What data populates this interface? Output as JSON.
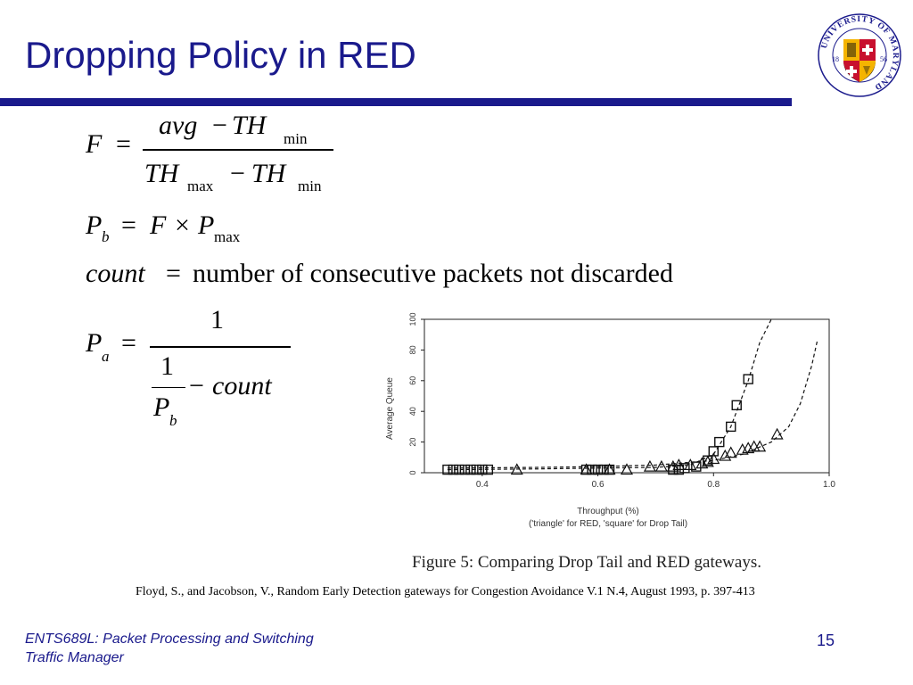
{
  "slide": {
    "title": "Dropping Policy in RED",
    "logo": {
      "ring_text": "UNIVERSITY OF MARYLAND",
      "year_left": "18",
      "year_right": "56",
      "colors": {
        "red": "#c8102e",
        "gold": "#f5b400",
        "black": "#111111",
        "navy": "#1a1a8c"
      }
    },
    "formulas": {
      "f_lhs": "F",
      "f_num_a": "avg",
      "f_num_b": "TH",
      "f_num_sub": "min",
      "f_den_a": "TH",
      "f_den_a_sub": "max",
      "f_den_b": "TH",
      "f_den_b_sub": "min",
      "pb_lhs": "P",
      "pb_lhs_sub": "b",
      "pb_rhs_a": "F",
      "pb_rhs_b": "P",
      "pb_rhs_b_sub": "max",
      "count_lhs": "count",
      "count_rhs": "number of consecutive packets not discarded",
      "pa_lhs": "P",
      "pa_lhs_sub": "a",
      "pa_num": "1",
      "pa_inner_num": "1",
      "pa_inner_den": "P",
      "pa_inner_den_sub": "b",
      "pa_count": "count"
    },
    "figure_caption": "Figure 5: Comparing Drop Tail and RED gateways.",
    "citation": "Floyd, S., and Jacobson, V., Random Early Detection gateways for Congestion Avoidance V.1 N.4, August 1993, p. 397-413",
    "footer_line1": "ENTS689L: Packet Processing and Switching",
    "footer_line2": "Traffic Manager",
    "page_number": "15"
  },
  "chart_data": {
    "type": "scatter",
    "xlabel": "Throughput (%)",
    "xlabel_note": "('triangle' for RED, 'square' for Drop Tail)",
    "ylabel": "Average Queue",
    "xlim": [
      0.3,
      1.0
    ],
    "ylim": [
      0,
      100
    ],
    "x_ticks": [
      "0.4",
      "0.6",
      "0.8",
      "1.0"
    ],
    "y_ticks": [
      "0",
      "20",
      "40",
      "60",
      "80",
      "100"
    ],
    "x_tick_values": [
      0.4,
      0.6,
      0.8,
      1.0
    ],
    "y_tick_values": [
      0,
      20,
      40,
      60,
      80,
      100
    ],
    "series": [
      {
        "marker": "square",
        "points": [
          [
            0.34,
            2
          ],
          [
            0.35,
            2
          ],
          [
            0.36,
            2
          ],
          [
            0.37,
            2
          ],
          [
            0.38,
            2
          ],
          [
            0.39,
            2
          ],
          [
            0.4,
            2
          ],
          [
            0.41,
            2
          ],
          [
            0.58,
            2
          ],
          [
            0.59,
            2
          ],
          [
            0.6,
            2
          ],
          [
            0.61,
            2
          ],
          [
            0.62,
            2
          ],
          [
            0.73,
            2
          ],
          [
            0.74,
            2
          ],
          [
            0.75,
            3
          ],
          [
            0.77,
            4
          ],
          [
            0.79,
            8
          ],
          [
            0.8,
            14
          ],
          [
            0.81,
            20
          ],
          [
            0.83,
            30
          ],
          [
            0.84,
            44
          ],
          [
            0.86,
            61
          ]
        ],
        "curve": [
          [
            0.34,
            2
          ],
          [
            0.5,
            2.5
          ],
          [
            0.6,
            3
          ],
          [
            0.7,
            3.5
          ],
          [
            0.76,
            5
          ],
          [
            0.8,
            12
          ],
          [
            0.83,
            30
          ],
          [
            0.86,
            60
          ],
          [
            0.88,
            85
          ],
          [
            0.9,
            100
          ]
        ]
      },
      {
        "marker": "triangle",
        "points": [
          [
            0.46,
            2
          ],
          [
            0.58,
            2
          ],
          [
            0.62,
            2
          ],
          [
            0.65,
            2
          ],
          [
            0.69,
            4
          ],
          [
            0.71,
            4
          ],
          [
            0.73,
            4
          ],
          [
            0.74,
            5
          ],
          [
            0.76,
            5
          ],
          [
            0.78,
            6
          ],
          [
            0.79,
            7
          ],
          [
            0.8,
            9
          ],
          [
            0.82,
            11
          ],
          [
            0.83,
            13
          ],
          [
            0.85,
            15
          ],
          [
            0.86,
            16
          ],
          [
            0.87,
            17
          ],
          [
            0.88,
            17
          ],
          [
            0.91,
            25
          ]
        ],
        "curve": [
          [
            0.34,
            3
          ],
          [
            0.5,
            3.5
          ],
          [
            0.6,
            4
          ],
          [
            0.7,
            5
          ],
          [
            0.8,
            8
          ],
          [
            0.85,
            12
          ],
          [
            0.9,
            20
          ],
          [
            0.93,
            30
          ],
          [
            0.95,
            45
          ],
          [
            0.97,
            70
          ],
          [
            0.98,
            87
          ]
        ]
      }
    ]
  }
}
